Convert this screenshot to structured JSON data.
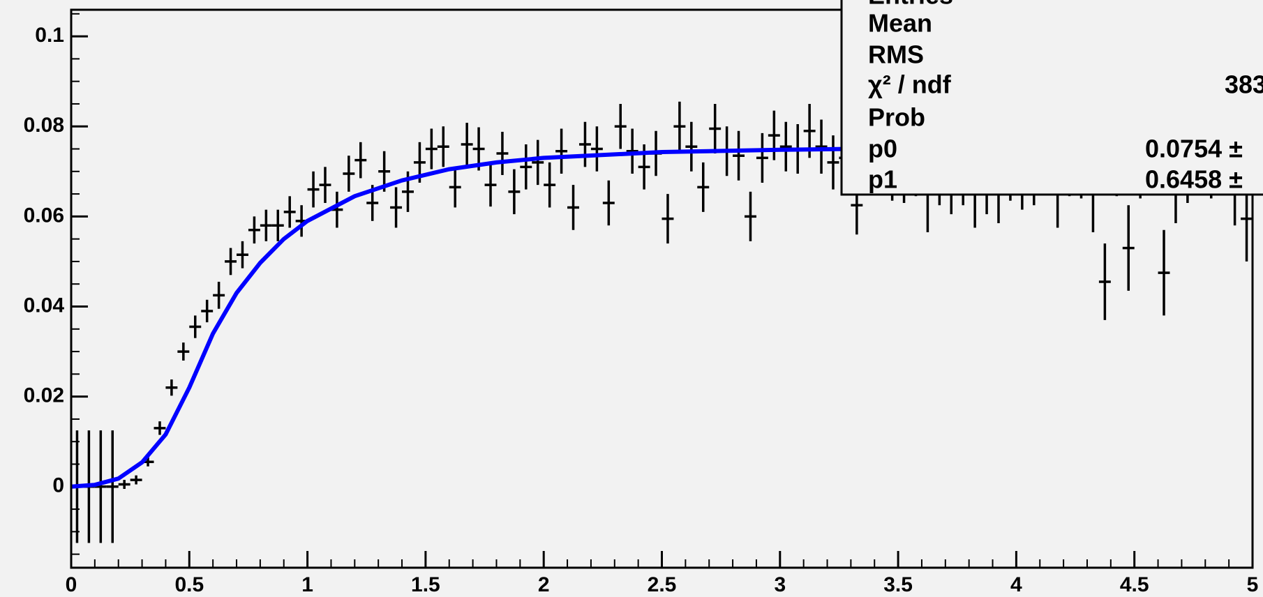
{
  "chart_data": {
    "type": "errorbar",
    "color": "#000000",
    "x": [
      0.025,
      0.075,
      0.125,
      0.175,
      0.225,
      0.275,
      0.325,
      0.375,
      0.425,
      0.475,
      0.525,
      0.575,
      0.625,
      0.675,
      0.725,
      0.775,
      0.825,
      0.875,
      0.925,
      0.975,
      1.025,
      1.075,
      1.125,
      1.175,
      1.225,
      1.275,
      1.325,
      1.375,
      1.425,
      1.475,
      1.525,
      1.575,
      1.625,
      1.675,
      1.725,
      1.775,
      1.825,
      1.875,
      1.925,
      1.975,
      2.025,
      2.075,
      2.125,
      2.175,
      2.225,
      2.275,
      2.325,
      2.375,
      2.425,
      2.475,
      2.525,
      2.575,
      2.625,
      2.675,
      2.725,
      2.775,
      2.825,
      2.875,
      2.925,
      2.975,
      3.025,
      3.075,
      3.125,
      3.175,
      3.225,
      3.275,
      3.325,
      3.375,
      3.425,
      3.475,
      3.525,
      3.575,
      3.625,
      3.675,
      3.725,
      3.775,
      3.825,
      3.875,
      3.925,
      3.975,
      4.025,
      4.075,
      4.125,
      4.175,
      4.225,
      4.275,
      4.325,
      4.375,
      4.425,
      4.475,
      4.525,
      4.575,
      4.625,
      4.675,
      4.725,
      4.775,
      4.825,
      4.875,
      4.925,
      4.975
    ],
    "values": [
      0,
      0,
      0,
      0,
      0.0005,
      0.0015,
      0.0055,
      0.013,
      0.022,
      0.03,
      0.0355,
      0.039,
      0.0425,
      0.05,
      0.0515,
      0.057,
      0.058,
      0.058,
      0.061,
      0.059,
      0.066,
      0.067,
      0.0615,
      0.0695,
      0.0725,
      0.063,
      0.07,
      0.062,
      0.0655,
      0.072,
      0.075,
      0.0755,
      0.0665,
      0.076,
      0.075,
      0.067,
      0.074,
      0.0655,
      0.071,
      0.072,
      0.067,
      0.0745,
      0.062,
      0.076,
      0.075,
      0.063,
      0.08,
      0.0745,
      0.071,
      0.074,
      0.0595,
      0.08,
      0.0755,
      0.0665,
      0.0795,
      0.0745,
      0.0735,
      0.06,
      0.073,
      0.078,
      0.0755,
      0.075,
      0.079,
      0.0755,
      0.072,
      0.073,
      0.0625,
      0.072,
      0.075,
      0.07,
      0.0695,
      0.071,
      0.066,
      0.07,
      0.068,
      0.07,
      0.066,
      0.069,
      0.067,
      0.071,
      0.069,
      0.07,
      0.073,
      0.066,
      0.072,
      0.0715,
      0.065,
      0.0455,
      0.0725,
      0.053,
      0.072,
      0.073,
      0.0475,
      0.0665,
      0.071,
      0.073,
      0.0715,
      0.0725,
      0.066,
      0.0595
    ],
    "errors": [
      0.0125,
      0.0125,
      0.0125,
      0.0125,
      0.001,
      0.001,
      0.001,
      0.0015,
      0.0018,
      0.002,
      0.0025,
      0.0025,
      0.003,
      0.003,
      0.003,
      0.003,
      0.0035,
      0.0035,
      0.0035,
      0.0035,
      0.004,
      0.004,
      0.004,
      0.004,
      0.004,
      0.004,
      0.0045,
      0.0045,
      0.0045,
      0.0045,
      0.0045,
      0.0045,
      0.0045,
      0.0048,
      0.0048,
      0.0048,
      0.0048,
      0.005,
      0.005,
      0.005,
      0.005,
      0.005,
      0.005,
      0.005,
      0.005,
      0.005,
      0.005,
      0.005,
      0.005,
      0.005,
      0.0055,
      0.0055,
      0.0055,
      0.0055,
      0.0055,
      0.0055,
      0.0055,
      0.0055,
      0.0055,
      0.0055,
      0.0055,
      0.0055,
      0.006,
      0.006,
      0.006,
      0.006,
      0.0065,
      0.0065,
      0.0065,
      0.0065,
      0.0065,
      0.0065,
      0.0095,
      0.0075,
      0.0075,
      0.0075,
      0.0085,
      0.0085,
      0.0085,
      0.0075,
      0.0075,
      0.0075,
      0.0075,
      0.0085,
      0.0075,
      0.0075,
      0.0085,
      0.0085,
      0.008,
      0.0095,
      0.008,
      0.0075,
      0.0095,
      0.008,
      0.008,
      0.0075,
      0.0075,
      0.0075,
      0.008,
      0.0095
    ],
    "fit": {
      "color": "#0000ff",
      "x": [
        0,
        0.1,
        0.2,
        0.3,
        0.4,
        0.5,
        0.6,
        0.7,
        0.8,
        0.9,
        1.0,
        1.2,
        1.4,
        1.6,
        1.8,
        2.0,
        2.5,
        3.0,
        3.3
      ],
      "values": [
        0,
        0.0004,
        0.0018,
        0.0054,
        0.0116,
        0.022,
        0.034,
        0.043,
        0.0497,
        0.055,
        0.059,
        0.0645,
        0.068,
        0.0705,
        0.072,
        0.073,
        0.0743,
        0.0748,
        0.075
      ]
    },
    "xlim": [
      0,
      5
    ],
    "ylim": [
      -0.018,
      0.1059
    ],
    "xticks": [
      0,
      0.5,
      1,
      1.5,
      2,
      2.5,
      3,
      3.5,
      4,
      4.5,
      5
    ],
    "yticks": [
      0,
      0.02,
      0.04,
      0.06,
      0.08,
      0.1
    ],
    "stats": [
      {
        "label": "Entries"
      },
      {
        "label": "Mean"
      },
      {
        "label": "RMS"
      },
      {
        "label": "χ² / ndf",
        "value": "383"
      },
      {
        "label": "Prob"
      },
      {
        "label": "p0",
        "value": "0.0754 ±"
      },
      {
        "label": "p1",
        "value": "0.6458 ±"
      }
    ]
  }
}
